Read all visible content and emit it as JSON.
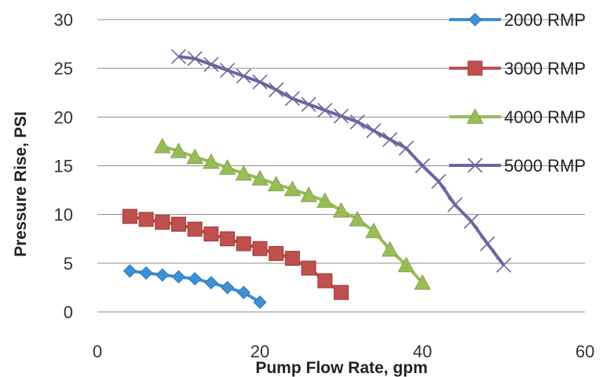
{
  "chart_data": {
    "type": "line",
    "xlabel": "Pump Flow Rate, gpm",
    "ylabel": "Pressure Rise, PSI",
    "xlim": [
      0,
      60
    ],
    "ylim": [
      0,
      30
    ],
    "xticks": [
      0,
      20,
      40,
      60
    ],
    "yticks": [
      0,
      5,
      10,
      15,
      20,
      25,
      30
    ],
    "grid": "horizontal",
    "legend_position": "right",
    "series": [
      {
        "name": "2000 RMP",
        "color": "#3f8fd4",
        "marker": "diamond",
        "x": [
          4,
          6,
          8,
          10,
          12,
          14,
          16,
          18,
          20
        ],
        "y": [
          4.2,
          4.0,
          3.8,
          3.6,
          3.4,
          3.0,
          2.5,
          2.0,
          1.0
        ]
      },
      {
        "name": "3000 RMP",
        "color": "#c0504d",
        "marker": "square",
        "x": [
          4,
          6,
          8,
          10,
          12,
          14,
          16,
          18,
          20,
          22,
          24,
          26,
          28,
          30
        ],
        "y": [
          9.8,
          9.5,
          9.2,
          9.0,
          8.5,
          8.0,
          7.5,
          7.0,
          6.5,
          6.0,
          5.5,
          4.5,
          3.2,
          2.0
        ]
      },
      {
        "name": "4000 RMP",
        "color": "#9bbb59",
        "marker": "triangle",
        "x": [
          8,
          10,
          12,
          14,
          16,
          18,
          20,
          22,
          24,
          26,
          28,
          30,
          32,
          34,
          36,
          38,
          40
        ],
        "y": [
          17.0,
          16.5,
          15.9,
          15.4,
          14.8,
          14.2,
          13.7,
          13.1,
          12.6,
          12.0,
          11.4,
          10.4,
          9.5,
          8.3,
          6.4,
          4.8,
          3.0
        ]
      },
      {
        "name": "5000 RMP",
        "color": "#7063a0",
        "marker": "x",
        "x": [
          10,
          12,
          14,
          16,
          18,
          20,
          22,
          24,
          26,
          28,
          30,
          32,
          34,
          36,
          38,
          40,
          42,
          44,
          46,
          48,
          50
        ],
        "y": [
          26.2,
          26.0,
          25.4,
          24.8,
          24.2,
          23.6,
          22.8,
          21.9,
          21.3,
          20.7,
          20.1,
          19.5,
          18.6,
          17.7,
          16.8,
          15.0,
          13.4,
          11.0,
          9.3,
          7.0,
          4.8
        ]
      }
    ]
  }
}
